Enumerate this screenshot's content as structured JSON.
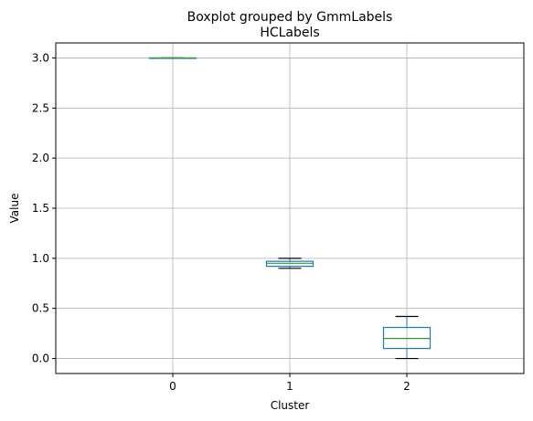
{
  "chart_data": {
    "type": "boxplot",
    "suptitle": "Boxplot grouped by GmmLabels",
    "title": "HCLabels",
    "xlabel": "Cluster",
    "ylabel": "Value",
    "categories": [
      "0",
      "1",
      "2"
    ],
    "boxes": [
      {
        "category": "0",
        "whisker_low": 3.0,
        "q1": 3.0,
        "median": 3.0,
        "q3": 3.0,
        "whisker_high": 3.0
      },
      {
        "category": "1",
        "whisker_low": 0.9,
        "q1": 0.92,
        "median": 0.95,
        "q3": 0.97,
        "whisker_high": 1.0
      },
      {
        "category": "2",
        "whisker_low": 0.0,
        "q1": 0.1,
        "median": 0.2,
        "q3": 0.31,
        "whisker_high": 0.42
      }
    ],
    "yticks": [
      0.0,
      0.5,
      1.0,
      1.5,
      2.0,
      2.5,
      3.0
    ],
    "ytick_labels": [
      "0.0",
      "0.5",
      "1.0",
      "1.5",
      "2.0",
      "2.5",
      "3.0"
    ],
    "ylim": [
      -0.15,
      3.15
    ],
    "grid": true,
    "colors": {
      "box": "#1f77b4",
      "median": "#2ca02c",
      "whisker": "#000000",
      "grid": "#b0b0b0"
    }
  }
}
